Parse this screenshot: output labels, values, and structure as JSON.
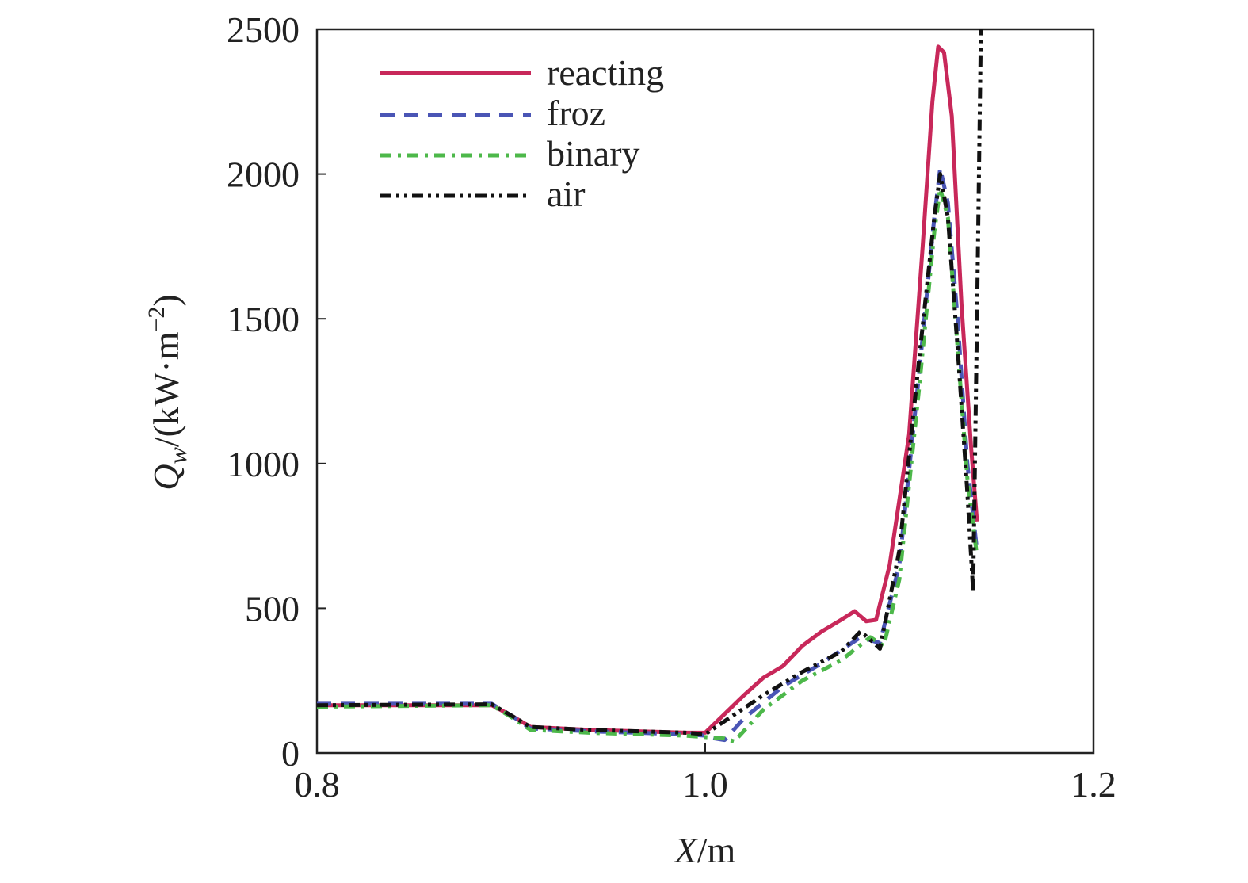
{
  "chart_data": {
    "type": "line",
    "title": "",
    "xlabel": {
      "var": "X",
      "unit": "/m"
    },
    "ylabel": {
      "var": "Q",
      "sub": "w",
      "unit": "/(kW·m",
      "exp": "−2",
      "close": ")"
    },
    "xlim": [
      0.8,
      1.2
    ],
    "ylim": [
      0,
      2500
    ],
    "xticks": [
      0.8,
      1.0,
      1.2
    ],
    "xtick_labels": [
      "0.8",
      "1.0",
      "1.2"
    ],
    "yticks": [
      0,
      500,
      1000,
      1500,
      2000,
      2500
    ],
    "ytick_labels": [
      "0",
      "500",
      "1000",
      "1500",
      "2000",
      "2500"
    ],
    "grid": false,
    "legend_position": "top-left",
    "series": [
      {
        "name": "reacting",
        "color": "#c8285a",
        "dash": "solid",
        "points": [
          [
            0.8,
            165
          ],
          [
            0.89,
            165
          ],
          [
            0.9,
            130
          ],
          [
            0.91,
            90
          ],
          [
            0.94,
            80
          ],
          [
            0.99,
            70
          ],
          [
            1.0,
            70
          ],
          [
            1.02,
            200
          ],
          [
            1.03,
            260
          ],
          [
            1.04,
            300
          ],
          [
            1.05,
            370
          ],
          [
            1.06,
            420
          ],
          [
            1.07,
            460
          ],
          [
            1.077,
            490
          ],
          [
            1.083,
            455
          ],
          [
            1.088,
            460
          ],
          [
            1.095,
            650
          ],
          [
            1.105,
            1100
          ],
          [
            1.112,
            1750
          ],
          [
            1.117,
            2250
          ],
          [
            1.12,
            2440
          ],
          [
            1.123,
            2420
          ],
          [
            1.127,
            2200
          ],
          [
            1.132,
            1550
          ],
          [
            1.137,
            1050
          ],
          [
            1.14,
            800
          ]
        ]
      },
      {
        "name": "froz",
        "color": "#4a55b5",
        "dash": "dashed",
        "points": [
          [
            0.8,
            170
          ],
          [
            0.89,
            170
          ],
          [
            0.9,
            130
          ],
          [
            0.91,
            85
          ],
          [
            0.94,
            75
          ],
          [
            0.99,
            65
          ],
          [
            1.0,
            60
          ],
          [
            1.005,
            50
          ],
          [
            1.01,
            45
          ],
          [
            1.02,
            120
          ],
          [
            1.04,
            230
          ],
          [
            1.06,
            310
          ],
          [
            1.08,
            400
          ],
          [
            1.09,
            380
          ],
          [
            1.1,
            650
          ],
          [
            1.11,
            1300
          ],
          [
            1.118,
            1850
          ],
          [
            1.121,
            2020
          ],
          [
            1.125,
            1900
          ],
          [
            1.13,
            1500
          ],
          [
            1.135,
            1000
          ],
          [
            1.14,
            700
          ]
        ]
      },
      {
        "name": "binary",
        "color": "#4db84a",
        "dash": "dashdot",
        "points": [
          [
            0.8,
            160
          ],
          [
            0.89,
            165
          ],
          [
            0.9,
            125
          ],
          [
            0.91,
            80
          ],
          [
            0.94,
            70
          ],
          [
            0.99,
            60
          ],
          [
            1.0,
            55
          ],
          [
            1.01,
            50
          ],
          [
            1.015,
            40
          ],
          [
            1.03,
            150
          ],
          [
            1.05,
            250
          ],
          [
            1.07,
            320
          ],
          [
            1.085,
            400
          ],
          [
            1.092,
            370
          ],
          [
            1.1,
            600
          ],
          [
            1.11,
            1250
          ],
          [
            1.118,
            1800
          ],
          [
            1.121,
            1950
          ],
          [
            1.125,
            1850
          ],
          [
            1.13,
            1400
          ],
          [
            1.135,
            950
          ],
          [
            1.14,
            680
          ]
        ]
      },
      {
        "name": "air",
        "color": "#111111",
        "dash": "dashdotdot",
        "points": [
          [
            0.8,
            165
          ],
          [
            0.89,
            168
          ],
          [
            0.9,
            130
          ],
          [
            0.91,
            90
          ],
          [
            0.94,
            80
          ],
          [
            0.99,
            70
          ],
          [
            1.0,
            65
          ],
          [
            1.01,
            110
          ],
          [
            1.03,
            200
          ],
          [
            1.05,
            280
          ],
          [
            1.07,
            350
          ],
          [
            1.08,
            420
          ],
          [
            1.087,
            380
          ],
          [
            1.09,
            360
          ],
          [
            1.1,
            700
          ],
          [
            1.11,
            1350
          ],
          [
            1.118,
            1850
          ],
          [
            1.121,
            2000
          ],
          [
            1.125,
            1850
          ],
          [
            1.13,
            1400
          ],
          [
            1.135,
            900
          ],
          [
            1.138,
            560
          ],
          [
            1.14,
            1500
          ],
          [
            1.142,
            2500
          ]
        ]
      }
    ]
  }
}
